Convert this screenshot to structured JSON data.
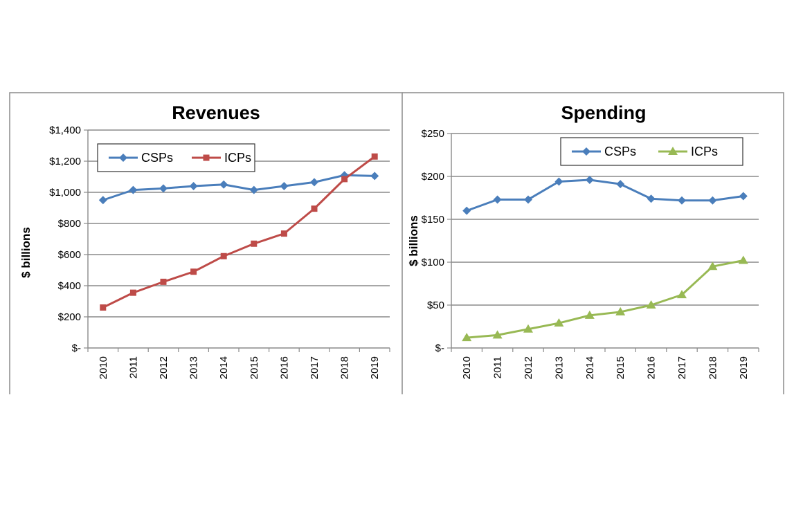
{
  "colors": {
    "csp": "#4a7ebb",
    "icp_revenue": "#be4b48",
    "icp_spending": "#98b954"
  },
  "chart_data": [
    {
      "type": "line",
      "title": "Revenues",
      "ylabel": "$ billions",
      "xlabel": "",
      "categories": [
        "2010",
        "2011",
        "2012",
        "2013",
        "2014",
        "2015",
        "2016",
        "2017",
        "2018",
        "2019"
      ],
      "ylim": [
        0,
        1400
      ],
      "yticks": [
        0,
        200,
        400,
        600,
        800,
        1000,
        1200,
        1400
      ],
      "ytick_labels": [
        "$-",
        "$200",
        "$400",
        "$600",
        "$800",
        "$1,000",
        "$1,200",
        "$1,400"
      ],
      "grid": true,
      "legend_position": "top-left",
      "series": [
        {
          "name": "CSPs",
          "marker": "diamond",
          "color": "#4a7ebb",
          "values": [
            950,
            1015,
            1025,
            1040,
            1050,
            1015,
            1040,
            1065,
            1110,
            1105
          ]
        },
        {
          "name": "ICPs",
          "marker": "square",
          "color": "#be4b48",
          "values": [
            260,
            355,
            425,
            490,
            590,
            670,
            735,
            895,
            1085,
            1230
          ]
        }
      ]
    },
    {
      "type": "line",
      "title": "Spending",
      "ylabel": "$ billions",
      "xlabel": "",
      "categories": [
        "2010",
        "2011",
        "2012",
        "2013",
        "2014",
        "2015",
        "2016",
        "2017",
        "2018",
        "2019"
      ],
      "ylim": [
        0,
        250
      ],
      "yticks": [
        0,
        50,
        100,
        150,
        200,
        250
      ],
      "ytick_labels": [
        "$-",
        "$50",
        "$100",
        "$150",
        "$200",
        "$250"
      ],
      "grid": true,
      "legend_position": "top-right",
      "series": [
        {
          "name": "CSPs",
          "marker": "diamond",
          "color": "#4a7ebb",
          "values": [
            160,
            173,
            173,
            194,
            196,
            191,
            174,
            172,
            172,
            177
          ]
        },
        {
          "name": "ICPs",
          "marker": "triangle",
          "color": "#98b954",
          "values": [
            12,
            15,
            22,
            29,
            38,
            42,
            50,
            62,
            95,
            102
          ]
        }
      ]
    }
  ]
}
